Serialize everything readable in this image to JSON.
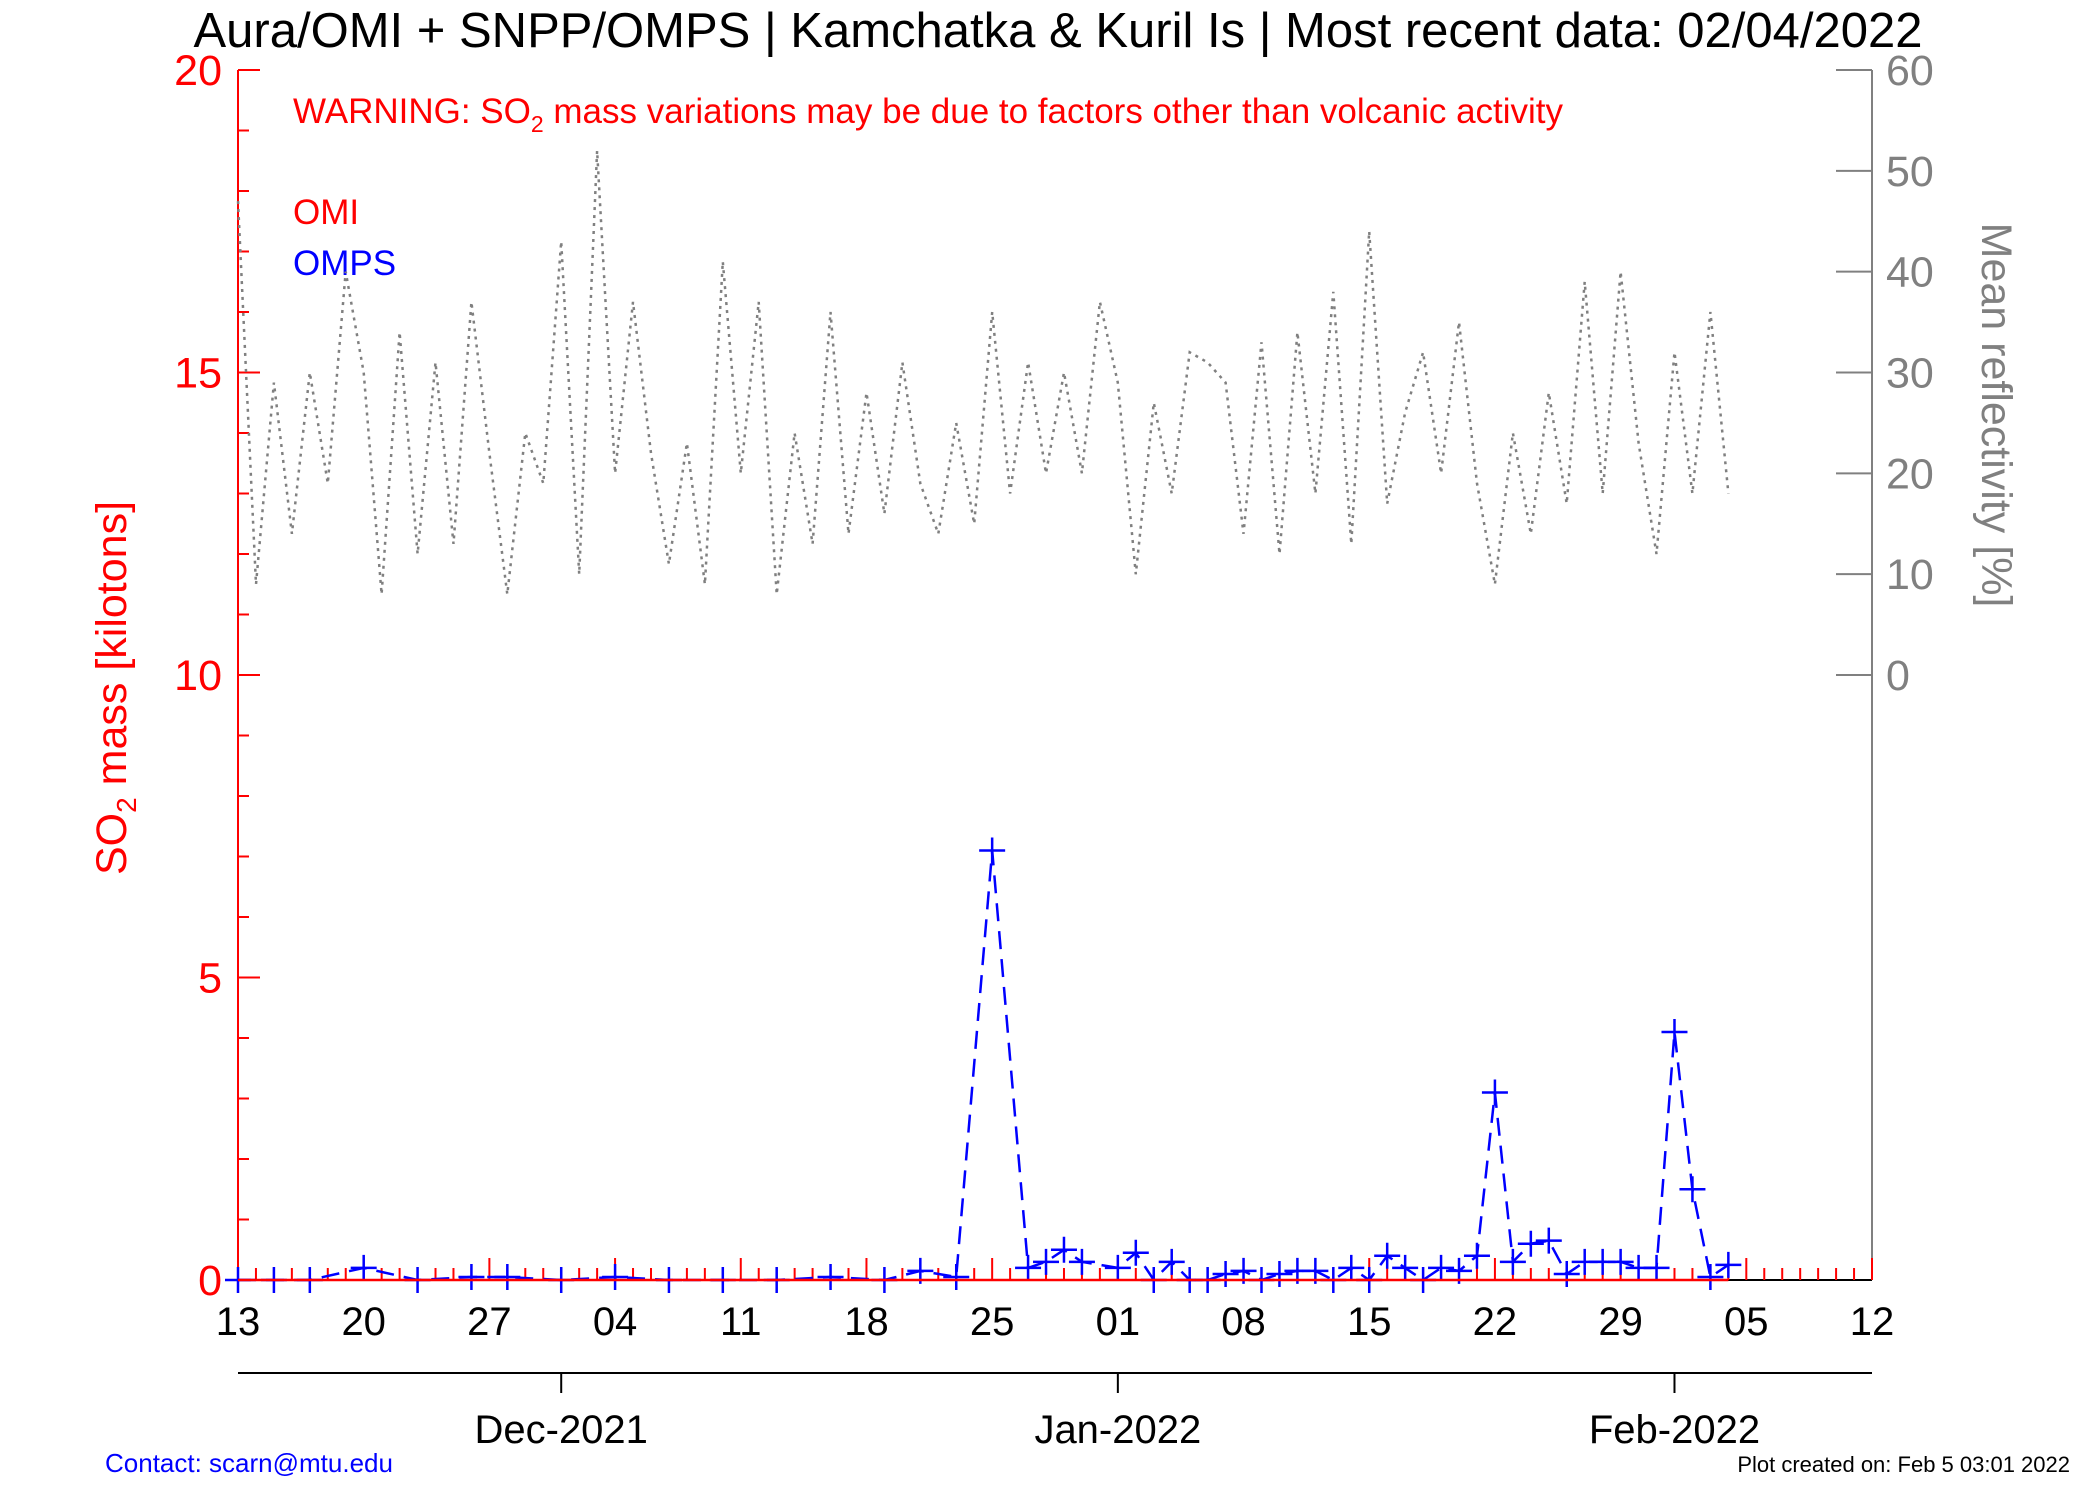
{
  "chart_data": {
    "type": "line",
    "title": "Aura/OMI + SNPP/OMPS | Kamchatka & Kuril Is | Most recent data: 02/04/2022",
    "warning": {
      "prefix": "WARNING: SO",
      "subscript": "2",
      "suffix": " mass variations may be due to factors other than volcanic activity"
    },
    "ylabel_left": {
      "prefix": "SO",
      "subscript": "2",
      "suffix": " mass [kilotons]"
    },
    "ylabel_right": "Mean reflectivity [%]",
    "x_axis": {
      "start_date": "2021-11-13",
      "end_date": "2022-02-12",
      "tick_labels": [
        "13",
        "20",
        "27",
        "04",
        "11",
        "18",
        "25",
        "01",
        "08",
        "15",
        "22",
        "29",
        "05",
        "12"
      ],
      "month_labels": [
        "Dec-2021",
        "Jan-2022",
        "Feb-2022"
      ]
    },
    "y_left": {
      "range": [
        0,
        20
      ],
      "ticks": [
        "0",
        "5",
        "10",
        "15",
        "20"
      ]
    },
    "y_right": {
      "range": [
        -60,
        60
      ],
      "ticks": [
        "0",
        "10",
        "20",
        "30",
        "40",
        "50",
        "60"
      ]
    },
    "legend": {
      "placement": "top-left",
      "entries": [
        "OMI",
        "OMPS"
      ]
    },
    "series": [
      {
        "name": "OMPS",
        "color": "#0000ff",
        "style": "dashed",
        "marker": "plus",
        "x": [
          "2021-11-13",
          "2021-11-15",
          "2021-11-17",
          "2021-11-20",
          "2021-11-23",
          "2021-11-26",
          "2021-11-28",
          "2021-12-01",
          "2021-12-04",
          "2021-12-07",
          "2021-12-10",
          "2021-12-13",
          "2021-12-16",
          "2021-12-19",
          "2021-12-21",
          "2021-12-23",
          "2021-12-25",
          "2021-12-27",
          "2021-12-28",
          "2021-12-29",
          "2021-12-30",
          "2022-01-01",
          "2022-01-02",
          "2022-01-03",
          "2022-01-04",
          "2022-01-05",
          "2022-01-06",
          "2022-01-07",
          "2022-01-08",
          "2022-01-09",
          "2022-01-10",
          "2022-01-11",
          "2022-01-12",
          "2022-01-13",
          "2022-01-14",
          "2022-01-15",
          "2022-01-16",
          "2022-01-17",
          "2022-01-18",
          "2022-01-19",
          "2022-01-20",
          "2022-01-21",
          "2022-01-22",
          "2022-01-23",
          "2022-01-24",
          "2022-01-25",
          "2022-01-26",
          "2022-01-27",
          "2022-01-28",
          "2022-01-29",
          "2022-01-30",
          "2022-01-31",
          "2022-02-01",
          "2022-02-02",
          "2022-02-03",
          "2022-02-04"
        ],
        "values": [
          0.0,
          0.0,
          0.0,
          0.2,
          0.0,
          0.05,
          0.05,
          0.0,
          0.05,
          0.0,
          0.0,
          0.0,
          0.05,
          0.0,
          0.15,
          0.05,
          7.1,
          0.2,
          0.3,
          0.5,
          0.3,
          0.2,
          0.45,
          0.0,
          0.3,
          0.0,
          0.0,
          0.1,
          0.15,
          0.0,
          0.1,
          0.15,
          0.15,
          0.0,
          0.2,
          0.0,
          0.4,
          0.2,
          0.0,
          0.2,
          0.15,
          0.4,
          3.1,
          0.3,
          0.6,
          0.65,
          0.1,
          0.3,
          0.3,
          0.3,
          0.2,
          0.2,
          4.1,
          1.5,
          0.05,
          0.25
        ]
      },
      {
        "name": "OMI",
        "color": "#ff0000",
        "style": "solid",
        "x": [
          "2021-11-13",
          "2021-11-20",
          "2021-11-27",
          "2021-12-04",
          "2021-12-11",
          "2021-12-18",
          "2021-12-25",
          "2022-01-01",
          "2022-01-08",
          "2022-01-15",
          "2022-01-22",
          "2022-01-29",
          "2022-02-04"
        ],
        "values": [
          0.0,
          0.0,
          0.0,
          0.0,
          0.0,
          0.0,
          0.0,
          0.0,
          0.0,
          0.0,
          0.0,
          0.0,
          0.0
        ]
      },
      {
        "name": "",
        "color": "#808080",
        "style": "dotted",
        "axis": "right",
        "x": [
          "2021-11-13",
          "2021-11-14",
          "2021-11-15",
          "2021-11-16",
          "2021-11-17",
          "2021-11-18",
          "2021-11-19",
          "2021-11-20",
          "2021-11-21",
          "2021-11-22",
          "2021-11-23",
          "2021-11-24",
          "2021-11-25",
          "2021-11-26",
          "2021-11-27",
          "2021-11-28",
          "2021-11-29",
          "2021-11-30",
          "2021-12-01",
          "2021-12-02",
          "2021-12-03",
          "2021-12-04",
          "2021-12-05",
          "2021-12-06",
          "2021-12-07",
          "2021-12-08",
          "2021-12-09",
          "2021-12-10",
          "2021-12-11",
          "2021-12-12",
          "2021-12-13",
          "2021-12-14",
          "2021-12-15",
          "2021-12-16",
          "2021-12-17",
          "2021-12-18",
          "2021-12-19",
          "2021-12-20",
          "2021-12-21",
          "2021-12-22",
          "2021-12-23",
          "2021-12-24",
          "2021-12-25",
          "2021-12-26",
          "2021-12-27",
          "2021-12-28",
          "2021-12-29",
          "2021-12-30",
          "2021-12-31",
          "2022-01-01",
          "2022-01-02",
          "2022-01-03",
          "2022-01-04",
          "2022-01-05",
          "2022-01-06",
          "2022-01-07",
          "2022-01-08",
          "2022-01-09",
          "2022-01-10",
          "2022-01-11",
          "2022-01-12",
          "2022-01-13",
          "2022-01-14",
          "2022-01-15",
          "2022-01-16",
          "2022-01-17",
          "2022-01-18",
          "2022-01-19",
          "2022-01-20",
          "2022-01-21",
          "2022-01-22",
          "2022-01-23",
          "2022-01-24",
          "2022-01-25",
          "2022-01-26",
          "2022-01-27",
          "2022-01-28",
          "2022-01-29",
          "2022-01-30",
          "2022-01-31",
          "2022-02-01",
          "2022-02-02",
          "2022-02-03",
          "2022-02-04"
        ],
        "values": [
          47,
          9,
          29,
          14,
          30,
          19,
          40,
          30,
          8,
          34,
          12,
          31,
          13,
          37,
          22,
          8,
          24,
          19,
          43,
          10,
          52,
          20,
          37,
          22,
          11,
          23,
          9,
          41,
          20,
          37,
          8,
          24,
          13,
          36,
          14,
          28,
          16,
          31,
          19,
          14,
          25,
          15,
          36,
          18,
          31,
          20,
          30,
          20,
          37,
          29,
          10,
          27,
          18,
          32,
          31,
          29,
          14,
          33,
          12,
          34,
          18,
          38,
          13,
          44,
          17,
          26,
          32,
          20,
          35,
          19,
          9,
          24,
          14,
          28,
          17,
          39,
          18,
          40,
          23,
          12,
          32,
          18,
          36,
          18
        ]
      }
    ]
  },
  "footer": {
    "contact": "Contact: scarn@mtu.edu",
    "created": "Plot created on: Feb  5 03:01 2022"
  }
}
